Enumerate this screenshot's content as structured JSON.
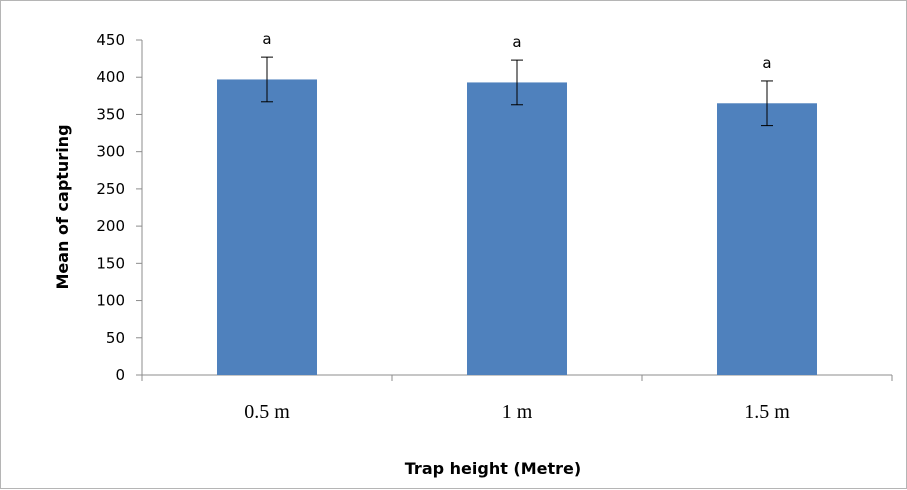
{
  "chart_data": {
    "type": "bar",
    "categories": [
      "0.5 m",
      "1 m",
      "1.5 m"
    ],
    "values": [
      397,
      393,
      365
    ],
    "error": [
      30,
      30,
      30
    ],
    "significance_letters": [
      "a",
      "a",
      "a"
    ],
    "xlabel": "Trap height (Metre)",
    "ylabel": "Mean of capturing",
    "ylim": [
      0,
      450
    ],
    "yticks": [
      0,
      50,
      100,
      150,
      200,
      250,
      300,
      350,
      400,
      450
    ],
    "grid": false,
    "legend": "none",
    "colors": {
      "bar": "#4f81bd",
      "axis": "#8c8c8c",
      "error_bar": "#000000"
    }
  }
}
